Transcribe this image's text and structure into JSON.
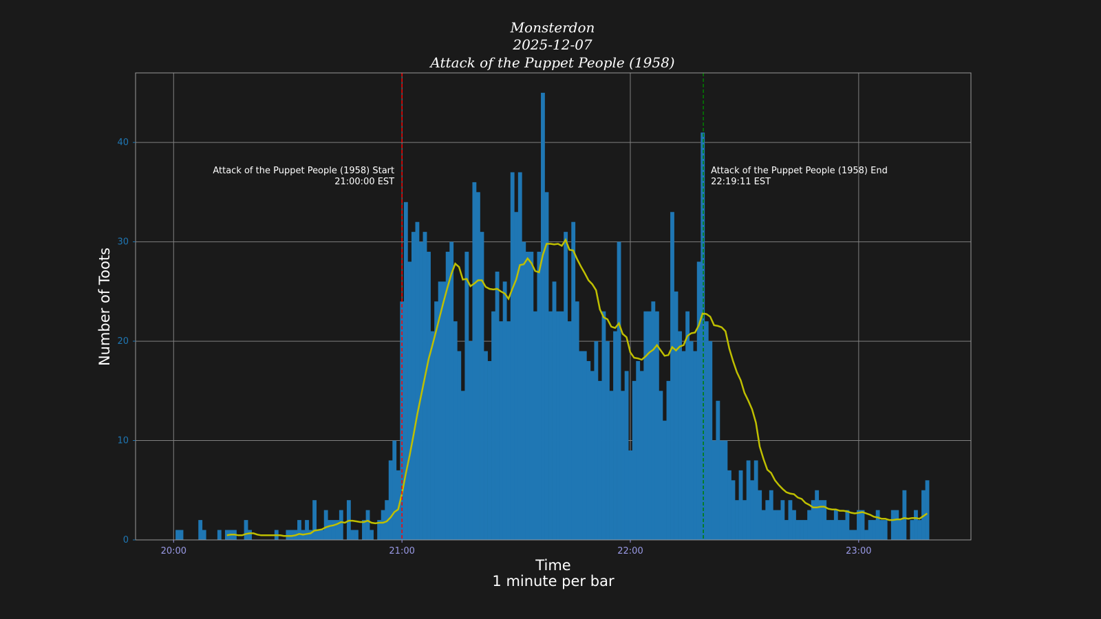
{
  "chart_data": {
    "type": "bar",
    "title": [
      "Monsterdon",
      "2025-12-07",
      "Attack of the Puppet People (1958)"
    ],
    "xlabel": [
      "Time",
      "1 minute per bar"
    ],
    "ylabel": "Number of Toots",
    "start_time": "20:00",
    "x_ticks": [
      "20:00",
      "21:00",
      "22:00",
      "23:00"
    ],
    "y_ticks": [
      0,
      10,
      20,
      30,
      40
    ],
    "xlim": [
      "19:50",
      "23:29"
    ],
    "ylim": [
      0,
      47
    ],
    "grid": true,
    "series": [
      {
        "type": "bar",
        "color": "#1f77b4",
        "interval_minutes": 1,
        "values": [
          0,
          1,
          1,
          0,
          0,
          0,
          0,
          2,
          1,
          0,
          0,
          0,
          1,
          0,
          1,
          1,
          1,
          0,
          0,
          2,
          1,
          0,
          0,
          0,
          0,
          0,
          0,
          1,
          0,
          0,
          1,
          1,
          1,
          2,
          1,
          2,
          1,
          4,
          1,
          1,
          3,
          2,
          2,
          2,
          3,
          0,
          4,
          1,
          1,
          0,
          2,
          3,
          1,
          0,
          2,
          3,
          4,
          8,
          10,
          7,
          24,
          34,
          28,
          31,
          32,
          30,
          31,
          29,
          21,
          24,
          26,
          26,
          29,
          30,
          22,
          19,
          15,
          29,
          20,
          36,
          35,
          31,
          19,
          18,
          23,
          27,
          22,
          26,
          22,
          37,
          33,
          37,
          30,
          29,
          29,
          23,
          29,
          45,
          35,
          23,
          26,
          23,
          23,
          31,
          22,
          32,
          24,
          19,
          19,
          18,
          17,
          20,
          16,
          23,
          20,
          15,
          21,
          30,
          15,
          17,
          9,
          16,
          18,
          17,
          23,
          23,
          24,
          23,
          15,
          12,
          16,
          33,
          25,
          21,
          19,
          23,
          20,
          19,
          28,
          41,
          22,
          20,
          10,
          14,
          10,
          10,
          7,
          6,
          4,
          7,
          4,
          8,
          6,
          8,
          5,
          3,
          4,
          5,
          3,
          3,
          4,
          2,
          4,
          3,
          2,
          2,
          2,
          3,
          4,
          5,
          4,
          4,
          2,
          2,
          3,
          2,
          2,
          3,
          1,
          1,
          3,
          3,
          1,
          2,
          2,
          3,
          2,
          2,
          0,
          3,
          3,
          2,
          5,
          0,
          2,
          3,
          2,
          5,
          6
        ]
      },
      {
        "type": "line",
        "color": "#bfbf00",
        "rolling_mean_of": "bars"
      }
    ],
    "annotations": [
      {
        "time": "21:00",
        "color": "#ff0000",
        "style": "dashed",
        "label": "Attack of the Puppet People (1958) Start",
        "sublabel": "21:00:00 EST",
        "align": "right"
      },
      {
        "time": "22:19",
        "color": "#008000",
        "style": "dashed",
        "label": "Attack of the Puppet People (1958) End",
        "sublabel": "22:19:11 EST",
        "align": "left"
      }
    ],
    "colors": {
      "background": "#1a1a1a",
      "grid": "#808080",
      "ytick": "#1f77b4",
      "xtick": "#9a9ae6"
    }
  }
}
